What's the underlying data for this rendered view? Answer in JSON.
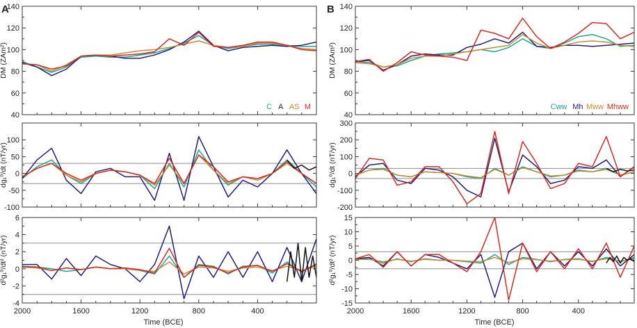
{
  "figure": {
    "panel_letters": [
      "A",
      "B"
    ],
    "x_axis_label": "Time (BCE)",
    "x_tick_labels": [
      "2000",
      "1600",
      "1200",
      "800",
      "400"
    ]
  },
  "colors": {
    "C": "#1aa89a",
    "A": "#1f1d7a",
    "AS": "#c98b2e",
    "M": "#d8281f",
    "Cww": "#1aa89a",
    "Mh": "#1f1d7a",
    "Mww": "#c98b2e",
    "Mhww": "#d8281f",
    "obs": "#111111",
    "ref": "#8c8c8c"
  },
  "chart_data": [
    {
      "id": "A-top",
      "panel": "A",
      "type": "line",
      "ylabel": "DM (ZAm²)",
      "ylim": [
        40,
        140
      ],
      "yticks": [
        40,
        60,
        80,
        100,
        120,
        140
      ],
      "xlim": [
        2000,
        0
      ],
      "xticks": [
        2000,
        1600,
        1200,
        800,
        400
      ],
      "legend_loc": "bottom-right",
      "reference_lines": [],
      "x": [
        2000,
        1900,
        1800,
        1700,
        1600,
        1500,
        1400,
        1300,
        1200,
        1100,
        1000,
        900,
        800,
        700,
        600,
        500,
        400,
        300,
        200,
        100,
        0
      ],
      "series": [
        {
          "name": "C",
          "values": [
            89,
            84,
            79,
            84,
            93,
            94,
            93,
            93,
            95,
            97,
            101,
            106,
            113,
            104,
            101,
            103,
            105,
            105,
            104,
            103,
            103
          ]
        },
        {
          "name": "A",
          "values": [
            88,
            84,
            76,
            82,
            94,
            95,
            94,
            92,
            92,
            95,
            100,
            107,
            117,
            104,
            99,
            102,
            103,
            104,
            103,
            104,
            107
          ]
        },
        {
          "name": "AS",
          "values": [
            87,
            86,
            80,
            86,
            94,
            95,
            95,
            97,
            99,
            100,
            102,
            105,
            108,
            104,
            102,
            103,
            106,
            106,
            104,
            101,
            100
          ]
        },
        {
          "name": "M",
          "values": [
            87,
            86,
            82,
            85,
            94,
            95,
            94,
            95,
            96,
            98,
            110,
            104,
            116,
            103,
            102,
            104,
            107,
            107,
            104,
            100,
            99
          ]
        }
      ]
    },
    {
      "id": "A-mid",
      "panel": "A",
      "type": "line",
      "ylabel": "dg₁⁰/dt (nT/yr)",
      "ylim": [
        -100,
        150
      ],
      "yticks": [
        -100,
        -50,
        0,
        50,
        100
      ],
      "xlim": [
        2000,
        0
      ],
      "xticks": [
        2000,
        1600,
        1200,
        800,
        400
      ],
      "legend_loc": "none",
      "reference_lines": [
        30,
        -30
      ],
      "x": [
        2000,
        1900,
        1800,
        1700,
        1600,
        1500,
        1400,
        1300,
        1200,
        1100,
        1000,
        900,
        800,
        700,
        600,
        500,
        400,
        300,
        200,
        100,
        0
      ],
      "series": [
        {
          "name": "C",
          "values": [
            -15,
            20,
            40,
            -5,
            -30,
            0,
            10,
            5,
            -5,
            -45,
            30,
            -40,
            70,
            10,
            -35,
            -10,
            -20,
            0,
            40,
            0,
            -40
          ]
        },
        {
          "name": "A",
          "values": [
            -15,
            40,
            75,
            -20,
            -60,
            5,
            15,
            -10,
            -10,
            -80,
            60,
            -80,
            110,
            20,
            -70,
            -20,
            -40,
            0,
            70,
            0,
            -60
          ]
        },
        {
          "name": "AS",
          "values": [
            -10,
            15,
            30,
            -5,
            -25,
            0,
            10,
            5,
            -5,
            -35,
            25,
            -30,
            55,
            10,
            -30,
            -10,
            -20,
            0,
            30,
            0,
            -30
          ]
        },
        {
          "name": "M",
          "values": [
            -10,
            15,
            30,
            0,
            -20,
            0,
            10,
            5,
            -5,
            -30,
            45,
            -30,
            55,
            20,
            -25,
            -10,
            -15,
            0,
            35,
            0,
            -30
          ]
        },
        {
          "name": "obs",
          "x": [
            200,
            150,
            100,
            50,
            0
          ],
          "values": [
            40,
            15,
            25,
            10,
            20
          ]
        }
      ]
    },
    {
      "id": "A-bot",
      "panel": "A",
      "type": "line",
      "ylabel": "d²g₁⁰/dt² (nT/yr)",
      "ylim": [
        -4,
        6
      ],
      "yticks": [
        -4,
        -2,
        0,
        2,
        4,
        6
      ],
      "xlim": [
        2000,
        0
      ],
      "xticks": [
        2000,
        1600,
        1200,
        800,
        400
      ],
      "legend_loc": "none",
      "reference_lines": [
        3,
        -3
      ],
      "x": [
        2000,
        1900,
        1800,
        1700,
        1600,
        1500,
        1400,
        1300,
        1200,
        1100,
        1000,
        900,
        800,
        700,
        600,
        500,
        400,
        300,
        200,
        100,
        0
      ],
      "series": [
        {
          "name": "C",
          "values": [
            0.3,
            0.2,
            0,
            -0.3,
            -0.1,
            0.2,
            0,
            0.1,
            -0.2,
            -0.6,
            1.5,
            -1,
            0.5,
            0.3,
            -0.6,
            0.3,
            0.4,
            -0.5,
            0.8,
            -0.4,
            0.6
          ]
        },
        {
          "name": "A",
          "values": [
            0.5,
            0.5,
            -1.2,
            1.2,
            -0.8,
            1.5,
            0.5,
            0,
            -1.5,
            0.5,
            5,
            -3.5,
            1.5,
            -1,
            2,
            -1,
            2,
            -1.5,
            2.5,
            -1.5,
            3.5
          ]
        },
        {
          "name": "AS",
          "values": [
            0.2,
            0.1,
            -0.2,
            0.1,
            -0.1,
            0.2,
            0,
            0,
            -0.2,
            -0.3,
            0.8,
            -0.6,
            0.2,
            0.1,
            -0.3,
            0.1,
            0.2,
            -0.2,
            0.3,
            -0.2,
            0.3
          ]
        },
        {
          "name": "M",
          "values": [
            0.2,
            0.2,
            -0.2,
            0.1,
            -0.1,
            0.2,
            0,
            0.1,
            -0.1,
            -0.5,
            2.4,
            -1,
            0.4,
            0.2,
            -0.5,
            0.2,
            0.4,
            -0.3,
            0.6,
            -0.3,
            0.5
          ]
        },
        {
          "name": "obs",
          "x": [
            200,
            175,
            150,
            125,
            100,
            75,
            50,
            25,
            0
          ],
          "values": [
            -1.5,
            2,
            -1,
            3,
            -1.5,
            2.5,
            -1,
            1.5,
            -1
          ]
        }
      ]
    },
    {
      "id": "B-top",
      "panel": "B",
      "type": "line",
      "ylabel": "DM (ZAm²)",
      "ylim": [
        40,
        140
      ],
      "yticks": [
        40,
        60,
        80,
        100,
        120,
        140
      ],
      "xlim": [
        2000,
        0
      ],
      "xticks": [
        2000,
        1600,
        1200,
        800,
        400
      ],
      "legend_loc": "bottom-right",
      "reference_lines": [],
      "x": [
        2000,
        1900,
        1800,
        1700,
        1600,
        1500,
        1400,
        1300,
        1200,
        1100,
        1000,
        900,
        800,
        700,
        600,
        500,
        400,
        300,
        200,
        100,
        0
      ],
      "series": [
        {
          "name": "Cww",
          "values": [
            89,
            88,
            84,
            85,
            90,
            94,
            96,
            97,
            98,
            100,
            98,
            102,
            110,
            103,
            101,
            106,
            112,
            114,
            110,
            103,
            104
          ]
        },
        {
          "name": "Mh",
          "values": [
            89,
            90,
            81,
            86,
            94,
            96,
            95,
            95,
            102,
            105,
            110,
            106,
            116,
            103,
            102,
            104,
            104,
            103,
            104,
            105,
            106
          ]
        },
        {
          "name": "Mww",
          "values": [
            88,
            87,
            84,
            86,
            92,
            94,
            94,
            96,
            98,
            100,
            102,
            104,
            114,
            106,
            101,
            104,
            107,
            108,
            107,
            104,
            103
          ]
        },
        {
          "name": "Mhww",
          "values": [
            89,
            91,
            80,
            88,
            98,
            95,
            94,
            93,
            90,
            118,
            115,
            110,
            129,
            112,
            101,
            107,
            115,
            125,
            124,
            110,
            116
          ]
        }
      ]
    },
    {
      "id": "B-mid",
      "panel": "B",
      "type": "line",
      "ylabel": "dg₁⁰/dt (nT/yr)",
      "ylim": [
        -200,
        300
      ],
      "yticks": [
        -200,
        -100,
        0,
        100,
        200,
        300
      ],
      "xlim": [
        2000,
        0
      ],
      "xticks": [
        2000,
        1600,
        1200,
        800,
        400
      ],
      "legend_loc": "none",
      "reference_lines": [
        30,
        -30
      ],
      "x": [
        2000,
        1900,
        1800,
        1700,
        1600,
        1500,
        1400,
        1300,
        1200,
        1100,
        1000,
        900,
        800,
        700,
        600,
        500,
        400,
        300,
        200,
        100,
        0
      ],
      "series": [
        {
          "name": "Cww",
          "values": [
            -10,
            20,
            30,
            -10,
            -20,
            10,
            5,
            0,
            -20,
            -30,
            30,
            -10,
            40,
            10,
            -20,
            -10,
            20,
            10,
            30,
            -10,
            10
          ]
        },
        {
          "name": "Mh",
          "values": [
            -20,
            50,
            60,
            -40,
            -60,
            30,
            20,
            -20,
            -100,
            -140,
            210,
            -110,
            110,
            40,
            -60,
            -40,
            40,
            30,
            80,
            -20,
            40
          ]
        },
        {
          "name": "Mww",
          "values": [
            -10,
            20,
            25,
            -10,
            -20,
            10,
            5,
            0,
            -15,
            -25,
            25,
            -10,
            35,
            10,
            -15,
            -10,
            15,
            10,
            25,
            -10,
            10
          ]
        },
        {
          "name": "Mhww",
          "values": [
            -30,
            90,
            80,
            -70,
            -50,
            40,
            40,
            -50,
            -180,
            -120,
            250,
            -120,
            190,
            60,
            -90,
            -60,
            60,
            40,
            220,
            -20,
            40
          ]
        },
        {
          "name": "obs",
          "x": [
            200,
            150,
            100,
            50,
            0
          ],
          "values": [
            30,
            10,
            25,
            15,
            20
          ]
        }
      ]
    },
    {
      "id": "B-bot",
      "panel": "B",
      "type": "line",
      "ylabel": "d²g₁⁰/dt² (nT/yr)",
      "ylim": [
        -15,
        15
      ],
      "yticks": [
        -15,
        -10,
        -5,
        0,
        5,
        10,
        15
      ],
      "xlim": [
        2000,
        0
      ],
      "xticks": [
        2000,
        1600,
        1200,
        800,
        400
      ],
      "legend_loc": "none",
      "reference_lines": [
        3,
        -3
      ],
      "x": [
        2000,
        1900,
        1800,
        1700,
        1600,
        1500,
        1400,
        1300,
        1200,
        1100,
        1000,
        900,
        800,
        700,
        600,
        500,
        400,
        300,
        200,
        100,
        0
      ],
      "series": [
        {
          "name": "Cww",
          "values": [
            0.5,
            0.5,
            -1,
            0.5,
            -0.5,
            0.5,
            0,
            0,
            -0.5,
            -1,
            2,
            -1.5,
            1,
            0.3,
            -0.5,
            0.3,
            0.5,
            -0.5,
            1,
            -0.5,
            1
          ]
        },
        {
          "name": "Mh",
          "values": [
            0.5,
            1,
            -2,
            3,
            -2,
            2,
            1,
            -1,
            -3,
            2,
            -13,
            3,
            6,
            -3,
            3,
            -2,
            3,
            -2,
            4,
            -2,
            2
          ]
        },
        {
          "name": "Mww",
          "values": [
            0.3,
            0.3,
            -0.5,
            0.3,
            -0.3,
            0.3,
            0,
            0,
            -0.3,
            -0.5,
            1,
            -0.8,
            0.5,
            0.2,
            -0.3,
            0.2,
            0.3,
            -0.3,
            0.5,
            -0.3,
            0.5
          ]
        },
        {
          "name": "Mhww",
          "values": [
            0.5,
            2,
            -2.5,
            3,
            -2,
            2,
            2,
            -1,
            -4,
            3,
            15,
            -14,
            6,
            -4,
            3,
            -3,
            4,
            -3,
            6,
            -6,
            5
          ]
        },
        {
          "name": "obs",
          "x": [
            200,
            175,
            150,
            125,
            100,
            75,
            50,
            25,
            0
          ],
          "values": [
            -1,
            1,
            -0.5,
            1.5,
            -1,
            1,
            0,
            0.5,
            -0.5
          ]
        }
      ]
    }
  ]
}
